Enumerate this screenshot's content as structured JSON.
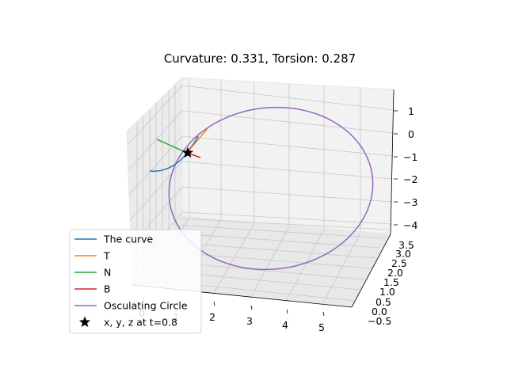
{
  "chart_data": {
    "type": "line",
    "projection": "3d",
    "title": "Curvature: 0.331, Torsion: 0.287",
    "grid": true,
    "legend_placement": "lower-left",
    "xticks": [
      "0",
      "1",
      "2",
      "3",
      "4",
      "5"
    ],
    "yticks": [
      "−0.5",
      "0.0",
      "0.5",
      "1.0",
      "1.5",
      "2.0",
      "2.5",
      "3.0",
      "3.5"
    ],
    "zticks": [
      "1",
      "0",
      "−1",
      "−2",
      "−3",
      "−4"
    ],
    "xlim": [
      -0.3,
      5.4
    ],
    "ylim": [
      -0.7,
      3.9
    ],
    "zlim": [
      -4.6,
      1.9
    ],
    "point": {
      "x": 0.8,
      "y": 0.64,
      "z": -0.9,
      "label": "x, y, z at t=0.8"
    },
    "curvature": 0.331,
    "torsion": 0.287,
    "series": [
      {
        "name": "The curve",
        "color": "#1f77b4"
      },
      {
        "name": "T",
        "color": "#ff7f0e"
      },
      {
        "name": "N",
        "color": "#2ca02c"
      },
      {
        "name": "B",
        "color": "#d62728"
      },
      {
        "name": "Osculating Circle",
        "color": "#9467bd"
      }
    ]
  }
}
